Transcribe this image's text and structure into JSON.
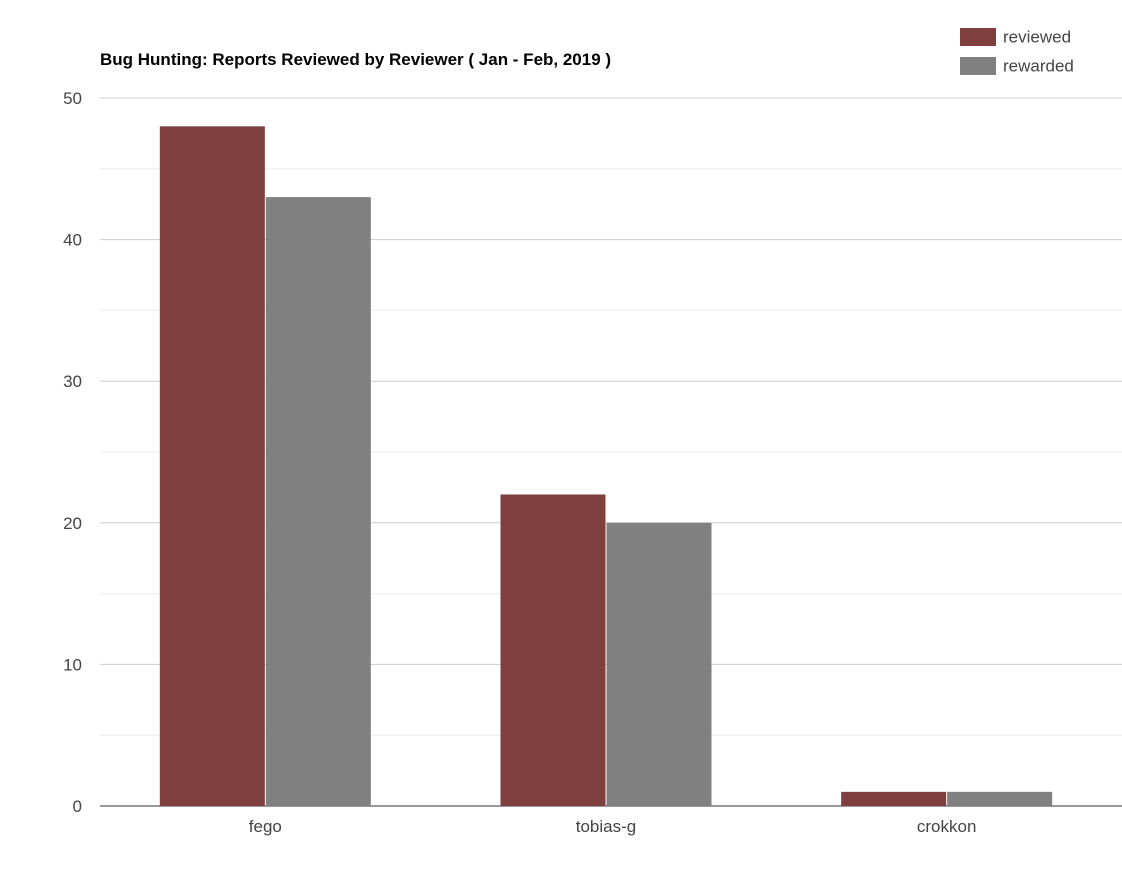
{
  "chart_data": {
    "type": "bar",
    "title": "Bug Hunting: Reports Reviewed by Reviewer ( Jan - Feb, 2019 )",
    "categories": [
      "fego",
      "tobias-g",
      "crokkon"
    ],
    "series": [
      {
        "name": "reviewed",
        "values": [
          48,
          22,
          1
        ],
        "color": "#7f3f3f"
      },
      {
        "name": "rewarded",
        "values": [
          43,
          20,
          1
        ],
        "color": "#808080"
      }
    ],
    "ylim": [
      0,
      50
    ],
    "y_ticks": [
      "0",
      "10",
      "20",
      "30",
      "40",
      "50"
    ],
    "grid": true,
    "legend_position": "top-right",
    "xlabel": "",
    "ylabel": ""
  }
}
